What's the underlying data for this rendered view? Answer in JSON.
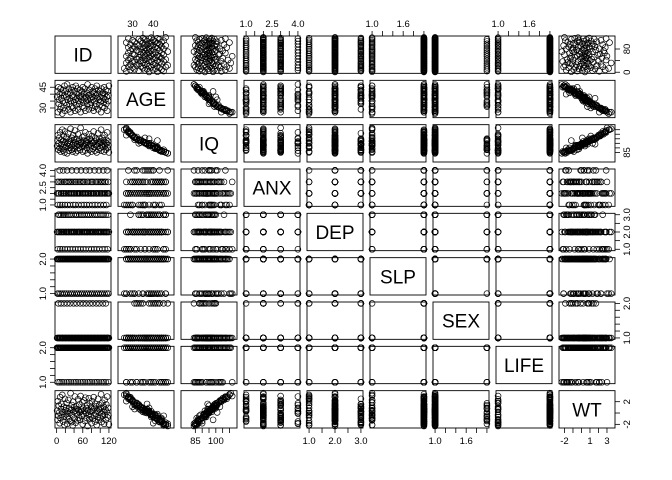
{
  "chart_data": {
    "type": "scatter",
    "variables": [
      {
        "name": "ID",
        "range": [
          1,
          120
        ],
        "ticks": [
          0,
          20,
          40,
          60,
          80,
          100,
          120
        ],
        "tick_labels": [
          "0",
          "60",
          "120"
        ],
        "labelled_ticks": [
          0,
          60,
          120
        ],
        "right_ticks": [
          0,
          40,
          80
        ],
        "right_labels": [
          "0",
          "80"
        ],
        "right_labelled": [
          0,
          80
        ]
      },
      {
        "name": "AGE",
        "range": [
          24,
          49
        ],
        "ticks": [
          30,
          35,
          40,
          45
        ],
        "tick_labels": [
          "30",
          "40"
        ],
        "labelled_ticks": [
          30,
          40
        ],
        "left_ticks": [
          30,
          35,
          40,
          45
        ],
        "left_labels": [
          "30",
          "45"
        ],
        "left_labelled": [
          30,
          45
        ]
      },
      {
        "name": "IQ",
        "range": [
          76,
          114
        ],
        "ticks": [
          85,
          90,
          95,
          100,
          105,
          110
        ],
        "tick_labels": [
          "85",
          "100"
        ],
        "labelled_ticks": [
          85,
          100
        ],
        "right_ticks": [
          85,
          90,
          95,
          100,
          105,
          110
        ],
        "right_labels": [
          "85"
        ],
        "right_labelled": [
          85
        ]
      },
      {
        "name": "ANX",
        "range": [
          1,
          4
        ],
        "ticks": [
          1.0,
          1.5,
          2.0,
          2.5,
          3.0,
          3.5,
          4.0
        ],
        "tick_labels": [
          "1.0",
          "2.5",
          "4.0"
        ],
        "labelled_ticks": [
          1.0,
          2.5,
          4.0
        ],
        "left_ticks": [
          1.0,
          1.5,
          2.0,
          2.5,
          3.0,
          3.5,
          4.0
        ],
        "left_labels": [
          "1.0",
          "2.5",
          "4.0"
        ],
        "left_labelled": [
          1.0,
          2.5,
          4.0
        ]
      },
      {
        "name": "DEP",
        "range": [
          1,
          3
        ],
        "ticks": [
          1.0,
          1.5,
          2.0,
          2.5,
          3.0
        ],
        "tick_labels": [
          "1.0",
          "2.0",
          "3.0"
        ],
        "labelled_ticks": [
          1.0,
          2.0,
          3.0
        ],
        "right_ticks": [
          1.0,
          1.5,
          2.0,
          2.5,
          3.0
        ],
        "right_labels": [
          "1.0",
          "2.0",
          "3.0"
        ],
        "right_labelled": [
          1.0,
          2.0,
          3.0
        ]
      },
      {
        "name": "SLP",
        "range": [
          1,
          2
        ],
        "ticks": [
          1.0,
          1.2,
          1.4,
          1.6,
          1.8,
          2.0
        ],
        "tick_labels": [
          "1.0",
          "1.6"
        ],
        "labelled_ticks": [
          1.0,
          1.6
        ],
        "left_ticks": [
          1.0,
          1.2,
          1.4,
          1.6,
          1.8,
          2.0
        ],
        "left_labels": [
          "1.0",
          "2.0"
        ],
        "left_labelled": [
          1.0,
          2.0
        ]
      },
      {
        "name": "SEX",
        "range": [
          1,
          2
        ],
        "ticks": [
          1.0,
          1.2,
          1.4,
          1.6,
          1.8,
          2.0
        ],
        "tick_labels": [
          "1.0",
          "1.6"
        ],
        "labelled_ticks": [
          1.0,
          1.6
        ],
        "right_ticks": [
          1.0,
          1.2,
          1.4,
          1.6,
          1.8,
          2.0
        ],
        "right_labels": [
          "1.0",
          "2.0"
        ],
        "right_labelled": [
          1.0,
          2.0
        ]
      },
      {
        "name": "LIFE",
        "range": [
          1,
          2
        ],
        "ticks": [
          1.0,
          1.2,
          1.4,
          1.6,
          1.8,
          2.0
        ],
        "tick_labels": [
          "1.0",
          "1.6"
        ],
        "labelled_ticks": [
          1.0,
          1.6
        ],
        "left_ticks": [
          1.0,
          1.2,
          1.4,
          1.6,
          1.8,
          2.0
        ],
        "left_labels": [
          "1.0",
          "2.0"
        ],
        "left_labelled": [
          1.0,
          2.0
        ]
      },
      {
        "name": "WT",
        "range": [
          -2.4,
          3.7
        ],
        "ticks": [
          -2,
          -1,
          0,
          1,
          2,
          3
        ],
        "tick_labels": [
          "-2",
          "1",
          "3"
        ],
        "labelled_ticks": [
          -2,
          1,
          3
        ],
        "right_ticks": [
          -2,
          0,
          2
        ],
        "right_labels": [
          "-2",
          "2"
        ],
        "right_labelled": [
          -2,
          2
        ]
      }
    ],
    "n_observations": 120,
    "observations": {
      "ID": [
        1,
        2,
        3,
        4,
        5,
        6,
        7,
        8,
        9,
        10,
        11,
        12,
        13,
        14,
        15,
        16,
        17,
        18,
        19,
        20,
        21,
        22,
        23,
        24,
        25,
        26,
        27,
        28,
        29,
        30,
        31,
        32,
        33,
        34,
        35,
        36,
        37,
        38,
        39,
        40,
        41,
        42,
        43,
        44,
        45,
        46,
        47,
        48,
        49,
        50,
        51,
        52,
        53,
        54,
        55,
        56,
        57,
        58,
        59,
        60,
        61,
        62,
        63,
        64,
        65,
        66,
        67,
        68,
        69,
        70,
        71,
        72,
        73,
        74,
        75,
        76,
        77,
        78,
        79,
        80,
        81,
        82,
        83,
        84,
        85,
        86,
        87,
        88,
        89,
        90,
        91,
        92,
        93,
        94,
        95,
        96,
        97,
        98,
        99,
        100,
        101,
        102,
        103,
        104,
        105,
        106,
        107,
        108,
        109,
        110,
        111,
        112,
        113,
        114,
        115,
        116,
        117,
        118,
        119,
        120
      ],
      "AGE": [
        38,
        42,
        27,
        45,
        33,
        36,
        40,
        29,
        44,
        31,
        37,
        41,
        26,
        35,
        43,
        30,
        39,
        46,
        28,
        34,
        42,
        38,
        32,
        47,
        36,
        40,
        29,
        44,
        33,
        37,
        41,
        27,
        35,
        43,
        31,
        39,
        45,
        30,
        38,
        34,
        42,
        28,
        36,
        46,
        32,
        40,
        37,
        44,
        29,
        35,
        41,
        33,
        38,
        43,
        27,
        39,
        36,
        42,
        31,
        45,
        34,
        40,
        30,
        37,
        44,
        28,
        38,
        35,
        41,
        33,
        47,
        36,
        39,
        29,
        43,
        32,
        37,
        40,
        34,
        45,
        30,
        38,
        42,
        36,
        28,
        41,
        35,
        44,
        31,
        39,
        33,
        46,
        37,
        40,
        29,
        43,
        36,
        32,
        38,
        42,
        35,
        27,
        44,
        39,
        31,
        41,
        37,
        34,
        45,
        30,
        40,
        36,
        43,
        33,
        38,
        28,
        42,
        35,
        39,
        46
      ],
      "IQ": [
        92,
        98,
        104,
        88,
        95,
        101,
        90,
        107,
        86,
        99,
        94,
        89,
        110,
        97,
        87,
        103,
        93,
        85,
        108,
        96,
        91,
        100,
        102,
        84,
        95,
        92,
        106,
        87,
        98,
        94,
        90,
        111,
        97,
        88,
        101,
        93,
        86,
        104,
        95,
        99,
        89,
        109,
        96,
        85,
        100,
        92,
        94,
        87,
        105,
        97,
        90,
        99,
        93,
        88,
        112,
        95,
        96,
        91,
        102,
        86,
        98,
        92,
        103,
        94,
        87,
        107,
        95,
        97,
        90,
        99,
        84,
        96,
        93,
        105,
        88,
        100,
        94,
        92,
        98,
        86,
        103,
        95,
        89,
        96,
        108,
        91,
        97,
        87,
        101,
        93,
        99,
        85,
        94,
        92,
        106,
        88,
        96,
        100,
        95,
        90,
        97,
        110,
        87,
        93,
        101,
        91,
        95,
        98,
        86,
        104,
        92,
        96,
        88,
        99,
        95,
        107,
        90,
        97,
        93,
        85
      ],
      "ANX": [
        2,
        3,
        1,
        2,
        3,
        2,
        4,
        1,
        3,
        2,
        2,
        3,
        1,
        2,
        4,
        2,
        3,
        2,
        1,
        3,
        2,
        2,
        3,
        4,
        1,
        2,
        3,
        2,
        2,
        3,
        1,
        2,
        3,
        2,
        4,
        2,
        3,
        1,
        2,
        2,
        3,
        2,
        1,
        3,
        2,
        4,
        2,
        3,
        2,
        1,
        2,
        3,
        2,
        2,
        3,
        4,
        1,
        2,
        3,
        2,
        2,
        3,
        1,
        2,
        3,
        2,
        4,
        2,
        1,
        3,
        2,
        2,
        3,
        2,
        1,
        4,
        2,
        3,
        2,
        2,
        3,
        1,
        2,
        3,
        2,
        2,
        4,
        1,
        3,
        2,
        2,
        3,
        2,
        1,
        2,
        3,
        4,
        2,
        2,
        3,
        1,
        2,
        3,
        2,
        2,
        3,
        4,
        1,
        2,
        3,
        2,
        2,
        3,
        1,
        2,
        4,
        2,
        3,
        2,
        2
      ],
      "DEP": [
        2,
        2,
        1,
        3,
        2,
        2,
        3,
        1,
        2,
        2,
        3,
        2,
        1,
        2,
        3,
        2,
        2,
        3,
        1,
        2,
        2,
        3,
        2,
        2,
        1,
        3,
        2,
        2,
        2,
        3,
        1,
        2,
        2,
        3,
        2,
        2,
        1,
        2,
        3,
        2,
        2,
        2,
        1,
        3,
        2,
        2,
        3,
        2,
        1,
        2,
        2,
        3,
        2,
        2,
        1,
        3,
        2,
        2,
        2,
        3,
        1,
        2,
        2,
        3,
        2,
        2,
        1,
        2,
        3,
        2,
        2,
        2,
        3,
        1,
        2,
        2,
        3,
        2,
        2,
        1,
        2,
        3,
        2,
        2,
        2,
        1,
        3,
        2,
        2,
        2,
        3,
        1,
        2,
        2,
        3,
        2,
        2,
        1,
        2,
        3,
        2,
        2,
        2,
        3,
        1,
        2,
        2,
        3,
        2,
        2,
        1,
        2,
        3,
        2,
        2,
        2,
        1,
        3,
        2,
        2
      ],
      "SLP": [
        2,
        1,
        2,
        2,
        1,
        2,
        2,
        2,
        1,
        2,
        2,
        2,
        1,
        2,
        2,
        2,
        2,
        1,
        2,
        2,
        2,
        1,
        2,
        2,
        2,
        2,
        1,
        2,
        2,
        2,
        2,
        1,
        2,
        2,
        2,
        1,
        2,
        2,
        2,
        2,
        1,
        2,
        2,
        2,
        2,
        1,
        2,
        2,
        2,
        1,
        2,
        2,
        2,
        2,
        1,
        2,
        2,
        2,
        1,
        2,
        2,
        2,
        2,
        1,
        2,
        2,
        2,
        2,
        1,
        2,
        2,
        2,
        1,
        2,
        2,
        2,
        2,
        1,
        2,
        2,
        2,
        1,
        2,
        2,
        2,
        2,
        1,
        2,
        2,
        2,
        2,
        1,
        2,
        2,
        2,
        1,
        2,
        2,
        2,
        2,
        1,
        2,
        2,
        2,
        1,
        2,
        2,
        2,
        2,
        1,
        2,
        2,
        2,
        2,
        1,
        2,
        2,
        2,
        1,
        2
      ],
      "SEX": [
        1,
        1,
        1,
        2,
        1,
        1,
        1,
        1,
        1,
        2,
        1,
        1,
        1,
        1,
        1,
        1,
        2,
        1,
        1,
        1,
        1,
        1,
        1,
        2,
        1,
        1,
        1,
        1,
        1,
        1,
        2,
        1,
        1,
        1,
        1,
        1,
        1,
        1,
        2,
        1,
        1,
        1,
        1,
        1,
        1,
        2,
        1,
        1,
        1,
        1,
        1,
        1,
        1,
        2,
        1,
        1,
        1,
        1,
        1,
        1,
        2,
        1,
        1,
        1,
        1,
        1,
        1,
        2,
        1,
        1,
        1,
        1,
        1,
        1,
        1,
        2,
        1,
        1,
        1,
        1,
        1,
        1,
        2,
        1,
        1,
        1,
        1,
        1,
        1,
        1,
        2,
        1,
        1,
        1,
        1,
        1,
        1,
        2,
        1,
        1,
        1,
        1,
        1,
        1,
        1,
        2,
        1,
        1,
        1,
        1,
        1,
        1,
        2,
        1,
        1,
        1,
        1,
        1,
        1,
        1
      ],
      "LIFE": [
        2,
        2,
        1,
        2,
        2,
        2,
        1,
        2,
        2,
        2,
        2,
        1,
        2,
        2,
        2,
        2,
        1,
        2,
        2,
        2,
        2,
        2,
        1,
        2,
        2,
        2,
        2,
        1,
        2,
        2,
        2,
        2,
        1,
        2,
        2,
        2,
        2,
        2,
        1,
        2,
        2,
        2,
        2,
        1,
        2,
        2,
        2,
        2,
        1,
        2,
        2,
        2,
        2,
        2,
        1,
        2,
        2,
        2,
        2,
        1,
        2,
        2,
        2,
        2,
        1,
        2,
        2,
        2,
        2,
        2,
        1,
        2,
        2,
        2,
        2,
        1,
        2,
        2,
        2,
        2,
        1,
        2,
        2,
        2,
        2,
        2,
        1,
        2,
        2,
        2,
        2,
        1,
        2,
        2,
        2,
        2,
        1,
        2,
        2,
        2,
        2,
        2,
        1,
        2,
        2,
        2,
        2,
        1,
        2,
        2,
        2,
        2,
        1,
        2,
        2,
        2,
        2,
        2,
        1,
        2
      ],
      "WT": [
        0.4,
        -1.2,
        2.1,
        -0.5,
        1.3,
        0.1,
        -1.8,
        2.8,
        -0.9,
        0.7,
        1.6,
        -0.3,
        3.2,
        0.2,
        -1.5,
        1.1,
        -0.7,
        -2.1,
        2.5,
        0.5,
        -0.2,
        0.9,
        1.8,
        -1.9,
        0.3,
        -0.6,
        2.3,
        -1.1,
        0.8,
        0.0,
        -1.4,
        3.5,
        0.6,
        -1.6,
        1.4,
        -0.4,
        -2.2,
        2.0,
        0.2,
        1.0,
        -1.0,
        2.9,
        0.4,
        -1.7,
        1.2,
        -0.1,
        0.7,
        -1.3,
        2.4,
        0.5,
        -0.8,
        1.5,
        0.1,
        -1.2,
        3.0,
        0.3,
        0.6,
        -0.5,
        1.9,
        -2.0,
        0.9,
        -0.2,
        2.2,
        0.4,
        -1.4,
        2.7,
        0.0,
        0.8,
        -0.9,
        1.3,
        -2.3,
        0.5,
        -0.3,
        2.6,
        -1.1,
        1.7,
        0.2,
        -0.6,
        1.0,
        -1.8,
        2.1,
        0.3,
        -1.0,
        0.6,
        2.8,
        -0.4,
        0.9,
        -1.5,
        1.6,
        -0.1,
        1.2,
        -2.1,
        0.4,
        -0.7,
        2.5,
        -1.3,
        0.7,
        1.4,
        0.1,
        -0.9,
        0.8,
        3.3,
        -1.6,
        -0.2,
        1.8,
        -0.5,
        0.3,
        1.1,
        -1.9,
        2.3,
        -0.3,
        0.6,
        -1.2,
        1.5,
        0.2,
        2.9,
        -0.8,
        0.9,
        -0.4,
        -2.0
      ]
    },
    "title": "",
    "xlabel": "",
    "ylabel": "",
    "grid": false
  }
}
